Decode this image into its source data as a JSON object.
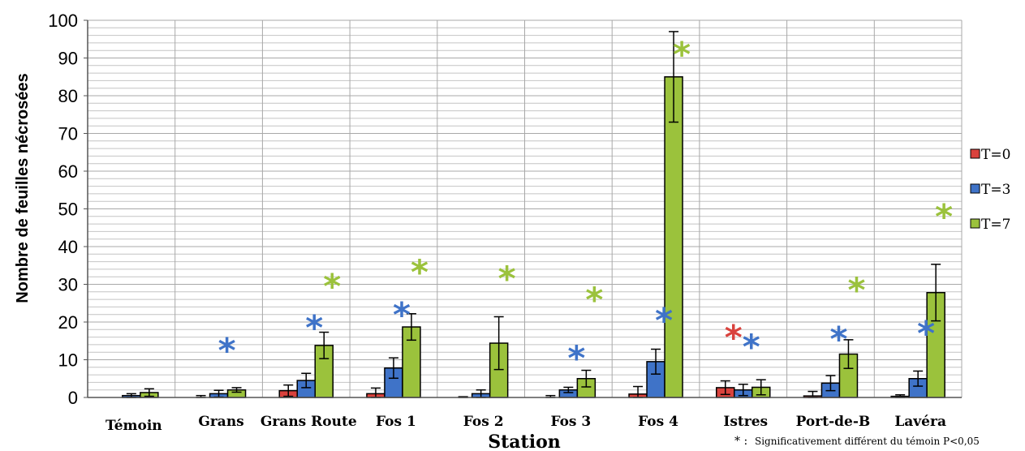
{
  "chart_data": {
    "type": "bar",
    "ylabel": "Nombre de feuilles nécrosées",
    "xlabel": "Station",
    "ylim": [
      0,
      100
    ],
    "yticks": [
      0,
      10,
      20,
      30,
      40,
      50,
      60,
      70,
      80,
      90,
      100
    ],
    "categories": [
      "Témoin",
      "Grans",
      "Grans Route",
      "Fos 1",
      "Fos 2",
      "Fos 3",
      "Fos 4",
      "Istres",
      "Port-de-B",
      "Lavéra"
    ],
    "series": [
      {
        "name": "T=0",
        "color": "#d9423d",
        "values": [
          0,
          0,
          1.8,
          1,
          0,
          0,
          0.9,
          2.6,
          0.4,
          0.3
        ],
        "errors": [
          0,
          0.5,
          1.5,
          1.5,
          0.2,
          0.5,
          2.0,
          1.8,
          1.2,
          0.4
        ]
      },
      {
        "name": "T=3",
        "color": "#3f73c8",
        "values": [
          0.5,
          1.0,
          4.5,
          7.8,
          1.0,
          2.0,
          9.5,
          2.0,
          3.8,
          5.0
        ],
        "errors": [
          0.5,
          0.9,
          1.9,
          2.7,
          1.0,
          0.7,
          3.3,
          1.5,
          2.0,
          2.0
        ]
      },
      {
        "name": "T=7",
        "color": "#9bc23c",
        "values": [
          1.3,
          2.0,
          13.8,
          18.7,
          14.4,
          5.0,
          85.0,
          2.7,
          11.5,
          27.8
        ],
        "errors": [
          1.0,
          0.6,
          3.5,
          3.5,
          7.0,
          2.2,
          12.0,
          2.0,
          3.8,
          7.5
        ]
      }
    ],
    "significance_markers": [
      {
        "category": "Grans",
        "series": "T=3",
        "y": 13
      },
      {
        "category": "Grans Route",
        "series": "T=3",
        "y": 19
      },
      {
        "category": "Grans Route",
        "series": "T=7",
        "y": 30
      },
      {
        "category": "Fos 1",
        "series": "T=3",
        "y": 22.5
      },
      {
        "category": "Fos 1",
        "series": "T=7",
        "y": 33.8
      },
      {
        "category": "Fos 2",
        "series": "T=7",
        "y": 32
      },
      {
        "category": "Fos 3",
        "series": "T=3",
        "y": 11
      },
      {
        "category": "Fos 3",
        "series": "T=7",
        "y": 26.5
      },
      {
        "category": "Fos 4",
        "series": "T=3",
        "y": 21
      },
      {
        "category": "Fos 4",
        "series": "T=7",
        "y": 91.5
      },
      {
        "category": "Istres",
        "series": "T=0",
        "y": 16.5
      },
      {
        "category": "Istres",
        "series": "T=3",
        "y": 14
      },
      {
        "category": "Port-de-B",
        "series": "T=3",
        "y": 16
      },
      {
        "category": "Port-de-B",
        "series": "T=7",
        "y": 29
      },
      {
        "category": "Lavéra",
        "series": "T=3",
        "y": 17.5
      },
      {
        "category": "Lavéra",
        "series": "T=7",
        "y": 48.5
      }
    ],
    "grid": true,
    "legend": "right",
    "footnote_symbol": "* :",
    "footnote_text": "Significativement différent du témoin P<0,05"
  }
}
